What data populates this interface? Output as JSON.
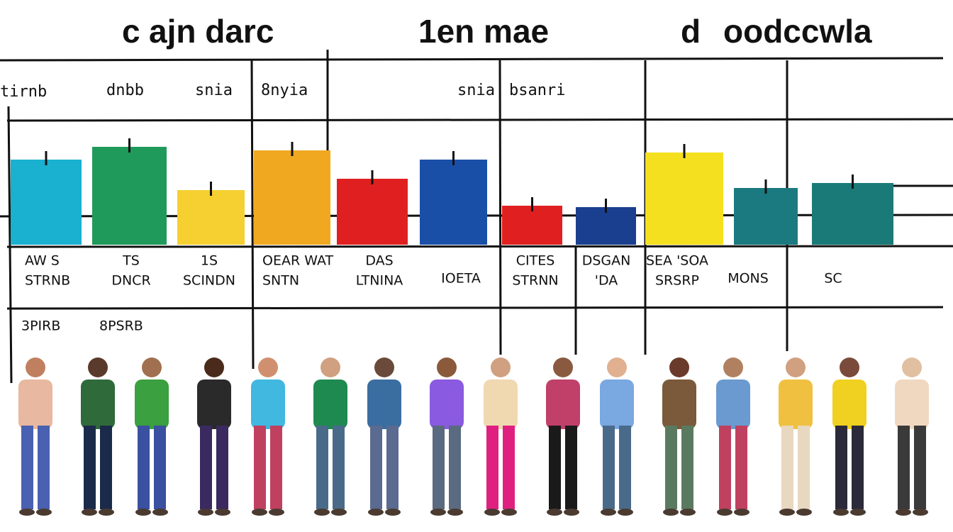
{
  "title": [
    "c",
    "ajn darc",
    "1en mae",
    "d",
    "oodccwla"
  ],
  "header_labels": [
    "tirnb",
    "dnbb",
    "snia",
    "8nyia",
    "snia",
    "bsanri"
  ],
  "cell_labels": [
    [
      "AW S",
      "STRNB"
    ],
    [
      "TS",
      "DNCR"
    ],
    [
      "1S",
      "SCINDN"
    ],
    [
      "OEAR WAT",
      "SNTN"
    ],
    [
      "DAS",
      "LTNINA"
    ],
    [
      "IOETA"
    ],
    [
      "CITES",
      "STRNN"
    ],
    [
      "DSGAN",
      "'DA"
    ],
    [
      "SEA 'SOA",
      "SRSRP"
    ],
    [
      "MONS"
    ],
    [
      "SC"
    ]
  ],
  "footer_labels": [
    "3PIRB",
    "8PSRB"
  ]
}
